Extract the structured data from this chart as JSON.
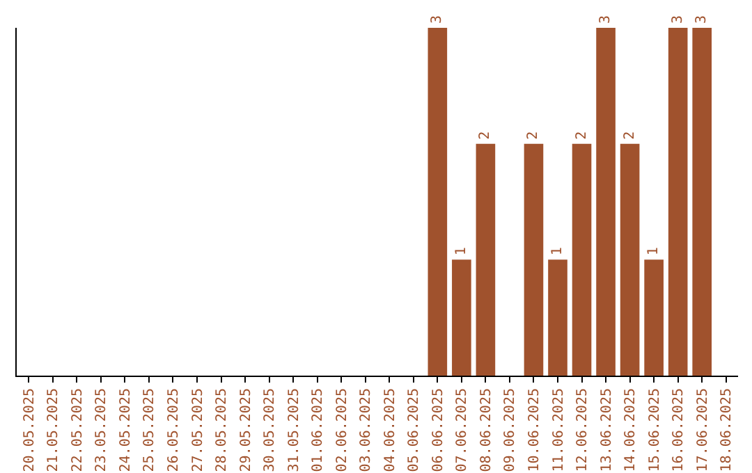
{
  "chart_data": {
    "type": "bar",
    "categories": [
      "20.05.2025",
      "21.05.2025",
      "22.05.2025",
      "23.05.2025",
      "24.05.2025",
      "25.05.2025",
      "26.05.2025",
      "27.05.2025",
      "28.05.2025",
      "29.05.2025",
      "30.05.2025",
      "31.05.2025",
      "01.06.2025",
      "02.06.2025",
      "03.06.2025",
      "04.06.2025",
      "05.06.2025",
      "06.06.2025",
      "07.06.2025",
      "08.06.2025",
      "09.06.2025",
      "10.06.2025",
      "11.06.2025",
      "12.06.2025",
      "13.06.2025",
      "14.06.2025",
      "15.06.2025",
      "16.06.2025",
      "17.06.2025",
      "18.06.2025"
    ],
    "values": [
      null,
      null,
      null,
      null,
      null,
      null,
      null,
      null,
      null,
      null,
      null,
      null,
      null,
      null,
      null,
      null,
      null,
      3,
      1,
      2,
      null,
      2,
      1,
      2,
      3,
      2,
      1,
      3,
      3,
      null
    ],
    "value_labels": [
      null,
      null,
      null,
      null,
      null,
      null,
      null,
      null,
      null,
      null,
      null,
      null,
      null,
      null,
      null,
      null,
      null,
      "3",
      "1",
      "2",
      null,
      "2",
      "1",
      "2",
      "3",
      "2",
      "1",
      "3",
      "3",
      null
    ],
    "color": "#a0522d",
    "ylim": [
      0,
      3
    ],
    "tick_labels": "x",
    "grid": false,
    "legend": false
  }
}
